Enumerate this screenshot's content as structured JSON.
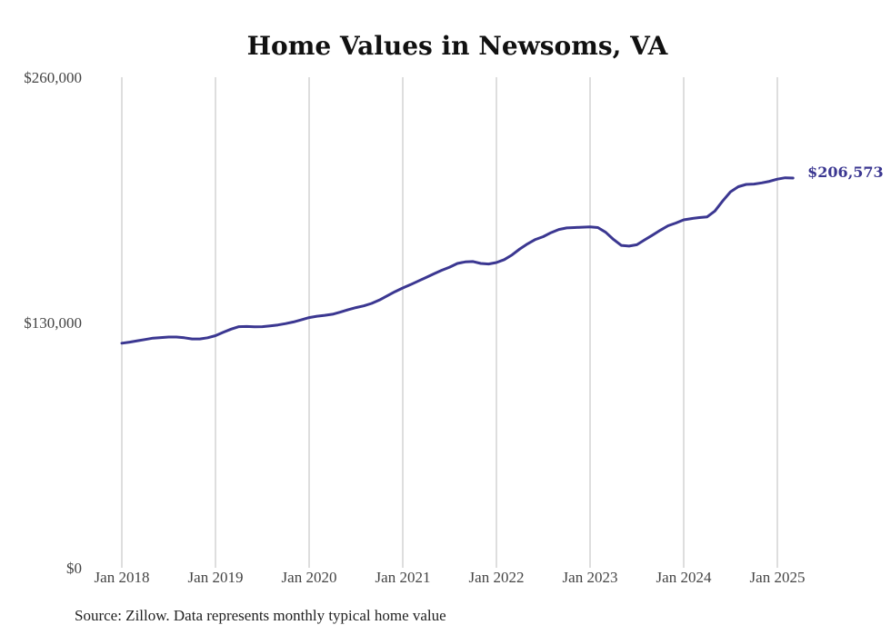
{
  "chart_data": {
    "type": "line",
    "title": "Home Values in Newsoms, VA",
    "xlabel": "",
    "ylabel": "",
    "x_tick_labels": [
      "Jan 2018",
      "Jan 2019",
      "Jan 2020",
      "Jan 2021",
      "Jan 2022",
      "Jan 2023",
      "Jan 2024",
      "Jan 2025"
    ],
    "x_tick_years": [
      2018,
      2019,
      2020,
      2021,
      2022,
      2023,
      2024,
      2025
    ],
    "y_tick_labels": [
      "$0",
      "$130,000",
      "$260,000"
    ],
    "y_tick_values": [
      0,
      130000,
      260000
    ],
    "ylim": [
      0,
      260000
    ],
    "xlim": [
      "2018-01",
      "2025-03"
    ],
    "grid": "vertical",
    "legend": "none",
    "line_color": "#3b3791",
    "end_label": "$206,573",
    "series": [
      {
        "x": [
          "2018-01",
          "2018-02",
          "2018-03",
          "2018-04",
          "2018-05",
          "2018-06",
          "2018-07",
          "2018-08",
          "2018-09",
          "2018-10",
          "2018-11",
          "2018-12",
          "2019-01",
          "2019-02",
          "2019-03",
          "2019-04",
          "2019-05",
          "2019-06",
          "2019-07",
          "2019-08",
          "2019-09",
          "2019-10",
          "2019-11",
          "2019-12",
          "2020-01",
          "2020-02",
          "2020-03",
          "2020-04",
          "2020-05",
          "2020-06",
          "2020-07",
          "2020-08",
          "2020-09",
          "2020-10",
          "2020-11",
          "2020-12",
          "2021-01",
          "2021-02",
          "2021-03",
          "2021-04",
          "2021-05",
          "2021-06",
          "2021-07",
          "2021-08",
          "2021-09",
          "2021-10",
          "2021-11",
          "2021-12",
          "2022-01",
          "2022-02",
          "2022-03",
          "2022-04",
          "2022-05",
          "2022-06",
          "2022-07",
          "2022-08",
          "2022-09",
          "2022-10",
          "2022-11",
          "2022-12",
          "2023-01",
          "2023-02",
          "2023-03",
          "2023-04",
          "2023-05",
          "2023-06",
          "2023-07",
          "2023-08",
          "2023-09",
          "2023-10",
          "2023-11",
          "2023-12",
          "2024-01",
          "2024-02",
          "2024-03",
          "2024-04",
          "2024-05",
          "2024-06",
          "2024-07",
          "2024-08",
          "2024-09",
          "2024-10",
          "2024-11",
          "2024-12",
          "2025-01",
          "2025-02",
          "2025-03"
        ],
        "values": [
          119000,
          119600,
          120300,
          121000,
          121700,
          122000,
          122300,
          122300,
          121900,
          121300,
          121300,
          121900,
          123000,
          124800,
          126500,
          127800,
          127900,
          127700,
          127800,
          128200,
          128700,
          129400,
          130300,
          131400,
          132600,
          133300,
          133800,
          134400,
          135500,
          136800,
          137900,
          138800,
          140100,
          141900,
          144100,
          146300,
          148300,
          150100,
          152000,
          153900,
          155800,
          157700,
          159300,
          161300,
          162100,
          162300,
          161300,
          161000,
          161800,
          163300,
          165800,
          169000,
          171700,
          174000,
          175500,
          177600,
          179300,
          180100,
          180300,
          180500,
          180700,
          180300,
          177800,
          174000,
          170900,
          170500,
          171200,
          173800,
          176300,
          178900,
          181300,
          182700,
          184400,
          185100,
          185600,
          186000,
          189100,
          194400,
          199300,
          202000,
          203200,
          203400,
          204000,
          204800,
          206000,
          206700,
          206573
        ]
      }
    ]
  },
  "footer": {
    "source": "Source: Zillow. Data represents monthly typical home value"
  }
}
